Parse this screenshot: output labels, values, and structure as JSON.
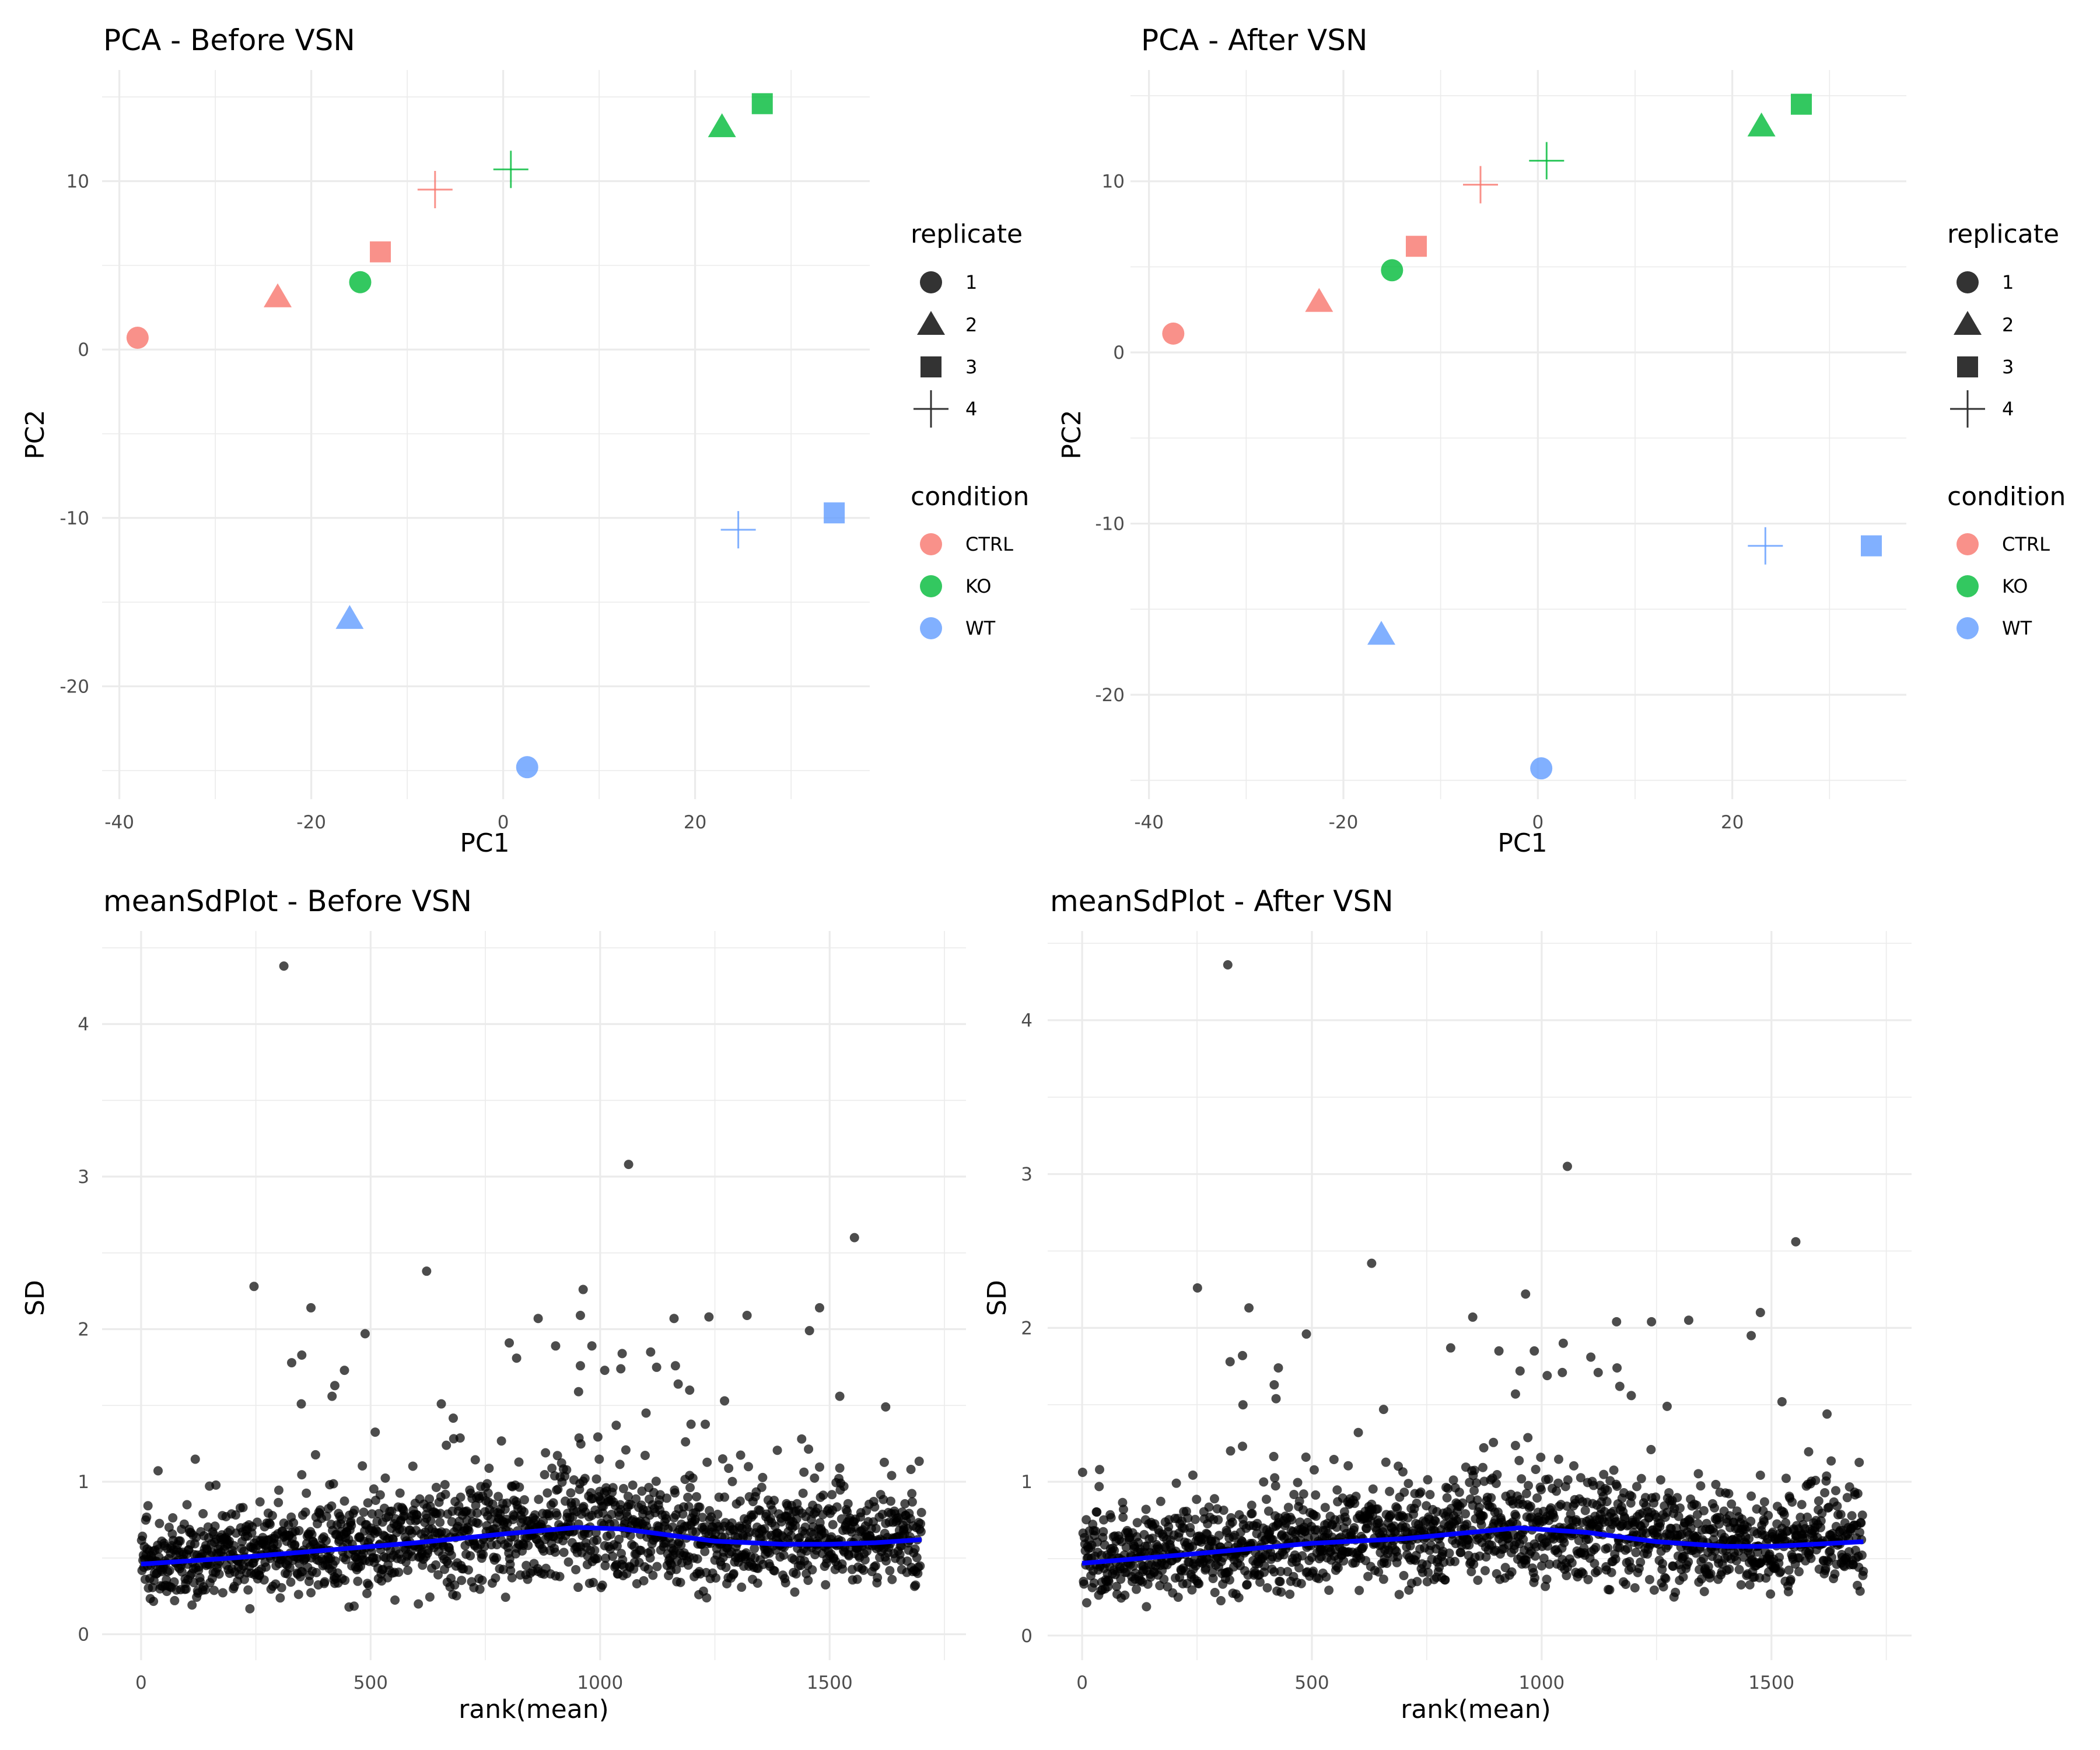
{
  "colors": {
    "CTRL": "#F8766D",
    "KO": "#00BA38",
    "WT": "#619CFF",
    "points": "#000000",
    "trend": "#0000FF",
    "grid": "#EBEBEB"
  },
  "chart_data": [
    {
      "type": "scatter",
      "title": "PCA - Before VSN",
      "xlabel": "PC1",
      "ylabel": "PC2",
      "xlim": [
        -41.8,
        38.2
      ],
      "ylim": [
        -26.7,
        16.6
      ],
      "x_ticks": [
        -40,
        -20,
        0,
        20
      ],
      "y_ticks": [
        -20,
        -10,
        0,
        10
      ],
      "grid": true,
      "legend_position": "right",
      "legend": {
        "shape_title": "replicate",
        "shape_items": [
          {
            "label": "1",
            "shape": "circle"
          },
          {
            "label": "2",
            "shape": "triangle"
          },
          {
            "label": "3",
            "shape": "square"
          },
          {
            "label": "4",
            "shape": "plus"
          }
        ],
        "color_title": "condition",
        "color_items": [
          "CTRL",
          "KO",
          "WT"
        ]
      },
      "points": [
        {
          "condition": "CTRL",
          "replicate": "1",
          "x": -38.1,
          "y": 0.7
        },
        {
          "condition": "CTRL",
          "replicate": "2",
          "x": -23.5,
          "y": 3.1
        },
        {
          "condition": "CTRL",
          "replicate": "3",
          "x": -12.8,
          "y": 5.8
        },
        {
          "condition": "CTRL",
          "replicate": "4",
          "x": -7.1,
          "y": 9.5
        },
        {
          "condition": "KO",
          "replicate": "1",
          "x": -14.9,
          "y": 4.0
        },
        {
          "condition": "KO",
          "replicate": "2",
          "x": 22.8,
          "y": 13.2
        },
        {
          "condition": "KO",
          "replicate": "3",
          "x": 27.0,
          "y": 14.6
        },
        {
          "condition": "KO",
          "replicate": "4",
          "x": 0.8,
          "y": 10.7
        },
        {
          "condition": "WT",
          "replicate": "1",
          "x": 2.5,
          "y": -24.8
        },
        {
          "condition": "WT",
          "replicate": "2",
          "x": -16.0,
          "y": -16.0
        },
        {
          "condition": "WT",
          "replicate": "3",
          "x": 34.5,
          "y": -9.7
        },
        {
          "condition": "WT",
          "replicate": "4",
          "x": 24.5,
          "y": -10.7
        }
      ]
    },
    {
      "type": "scatter",
      "title": "PCA - After VSN",
      "xlabel": "PC1",
      "ylabel": "PC2",
      "xlim": [
        -41.9,
        37.9
      ],
      "ylim": [
        -26.1,
        16.5
      ],
      "x_ticks": [
        -40,
        -20,
        0,
        20
      ],
      "y_ticks": [
        -20,
        -10,
        0,
        10
      ],
      "grid": true,
      "legend_position": "right",
      "legend": {
        "shape_title": "replicate",
        "shape_items": [
          {
            "label": "1",
            "shape": "circle"
          },
          {
            "label": "2",
            "shape": "triangle"
          },
          {
            "label": "3",
            "shape": "square"
          },
          {
            "label": "4",
            "shape": "plus"
          }
        ],
        "color_title": "condition",
        "color_items": [
          "CTRL",
          "KO",
          "WT"
        ]
      },
      "points": [
        {
          "condition": "CTRL",
          "replicate": "1",
          "x": -37.5,
          "y": 1.1
        },
        {
          "condition": "CTRL",
          "replicate": "2",
          "x": -22.5,
          "y": 2.95
        },
        {
          "condition": "CTRL",
          "replicate": "3",
          "x": -12.5,
          "y": 6.2
        },
        {
          "condition": "CTRL",
          "replicate": "4",
          "x": -5.9,
          "y": 9.8
        },
        {
          "condition": "KO",
          "replicate": "1",
          "x": -15.0,
          "y": 4.8
        },
        {
          "condition": "KO",
          "replicate": "2",
          "x": 23.0,
          "y": 13.2
        },
        {
          "condition": "KO",
          "replicate": "3",
          "x": 27.1,
          "y": 14.5
        },
        {
          "condition": "KO",
          "replicate": "4",
          "x": 0.9,
          "y": 11.2
        },
        {
          "condition": "WT",
          "replicate": "1",
          "x": 0.35,
          "y": -24.3
        },
        {
          "condition": "WT",
          "replicate": "2",
          "x": -16.1,
          "y": -16.5
        },
        {
          "condition": "WT",
          "replicate": "3",
          "x": 34.3,
          "y": -11.3
        },
        {
          "condition": "WT",
          "replicate": "4",
          "x": 23.4,
          "y": -11.3
        }
      ]
    },
    {
      "type": "scatter",
      "title": "meanSdPlot - Before VSN",
      "xlabel": "rank(mean)",
      "ylabel": "SD",
      "xlim": [
        -85,
        1797
      ],
      "ylim": [
        -0.17,
        4.61
      ],
      "x_ticks": [
        0,
        500,
        1000,
        1500
      ],
      "y_ticks": [
        0,
        1,
        2,
        3,
        4
      ],
      "grid": true,
      "n_points": 1700,
      "outliers": [
        [
          311,
          4.38
        ],
        [
          1062,
          3.08
        ],
        [
          1554,
          2.6
        ],
        [
          622,
          2.38
        ],
        [
          246,
          2.28
        ],
        [
          963,
          2.26
        ],
        [
          370,
          2.14
        ],
        [
          1478,
          2.14
        ],
        [
          957,
          2.09
        ],
        [
          865,
          2.07
        ],
        [
          1161,
          2.07
        ],
        [
          1237,
          2.08
        ],
        [
          1320,
          2.09
        ],
        [
          1456,
          1.99
        ],
        [
          488,
          1.97
        ],
        [
          802,
          1.91
        ],
        [
          903,
          1.89
        ],
        [
          982,
          1.89
        ],
        [
          818,
          1.81
        ],
        [
          1110,
          1.85
        ],
        [
          1048,
          1.84
        ],
        [
          328,
          1.78
        ],
        [
          350,
          1.83
        ],
        [
          443,
          1.73
        ],
        [
          957,
          1.76
        ],
        [
          1010,
          1.73
        ],
        [
          1045,
          1.74
        ],
        [
          1123,
          1.75
        ],
        [
          1164,
          1.76
        ],
        [
          422,
          1.63
        ],
        [
          416,
          1.56
        ],
        [
          349,
          1.51
        ],
        [
          1170,
          1.64
        ],
        [
          1195,
          1.6
        ],
        [
          953,
          1.59
        ],
        [
          1522,
          1.56
        ],
        [
          1622,
          1.49
        ],
        [
          654,
          1.51
        ],
        [
          1271,
          1.53
        ]
      ],
      "trend": [
        [
          0,
          0.46
        ],
        [
          200,
          0.5
        ],
        [
          400,
          0.55
        ],
        [
          600,
          0.6
        ],
        [
          800,
          0.66
        ],
        [
          950,
          0.7
        ],
        [
          1050,
          0.69
        ],
        [
          1150,
          0.65
        ],
        [
          1250,
          0.61
        ],
        [
          1400,
          0.59
        ],
        [
          1500,
          0.59
        ],
        [
          1600,
          0.6
        ],
        [
          1700,
          0.62
        ]
      ]
    },
    {
      "type": "scatter",
      "title": "meanSdPlot - After VSN",
      "xlabel": "rank(mean)",
      "ylabel": "SD",
      "xlim": [
        -75,
        1805
      ],
      "ylim": [
        -0.16,
        4.58
      ],
      "x_ticks": [
        0,
        500,
        1000,
        1500
      ],
      "y_ticks": [
        0,
        1,
        2,
        3,
        4
      ],
      "grid": true,
      "n_points": 1700,
      "outliers": [
        [
          317,
          4.36
        ],
        [
          1056,
          3.05
        ],
        [
          1553,
          2.56
        ],
        [
          630,
          2.42
        ],
        [
          251,
          2.26
        ],
        [
          965,
          2.22
        ],
        [
          363,
          2.13
        ],
        [
          1476,
          2.1
        ],
        [
          850,
          2.07
        ],
        [
          1163,
          2.04
        ],
        [
          1239,
          2.04
        ],
        [
          1320,
          2.05
        ],
        [
          1456,
          1.95
        ],
        [
          488,
          1.96
        ],
        [
          802,
          1.87
        ],
        [
          907,
          1.85
        ],
        [
          984,
          1.85
        ],
        [
          1047,
          1.9
        ],
        [
          1107,
          1.81
        ],
        [
          322,
          1.78
        ],
        [
          349,
          1.82
        ],
        [
          427,
          1.74
        ],
        [
          953,
          1.72
        ],
        [
          1012,
          1.69
        ],
        [
          1045,
          1.71
        ],
        [
          1123,
          1.71
        ],
        [
          1164,
          1.74
        ],
        [
          418,
          1.63
        ],
        [
          422,
          1.54
        ],
        [
          350,
          1.5
        ],
        [
          1170,
          1.62
        ],
        [
          1195,
          1.56
        ],
        [
          943,
          1.57
        ],
        [
          1523,
          1.52
        ],
        [
          1621,
          1.44
        ],
        [
          656,
          1.47
        ],
        [
          1273,
          1.49
        ]
      ],
      "trend": [
        [
          0,
          0.47
        ],
        [
          200,
          0.52
        ],
        [
          500,
          0.6
        ],
        [
          700,
          0.63
        ],
        [
          950,
          0.7
        ],
        [
          1100,
          0.67
        ],
        [
          1250,
          0.61
        ],
        [
          1400,
          0.58
        ],
        [
          1500,
          0.58
        ],
        [
          1700,
          0.61
        ]
      ]
    }
  ]
}
